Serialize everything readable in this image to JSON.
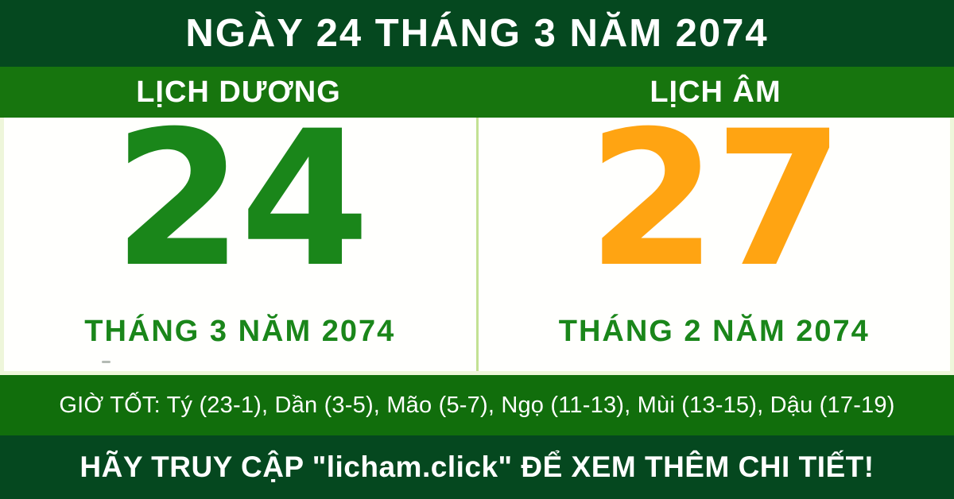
{
  "colors": {
    "dark_green": "#05481f",
    "bright_green": "#17750e",
    "hours_green": "#116e0c",
    "day_green": "#1a861a",
    "day_orange": "#ffa412",
    "text_white": "#ffffff",
    "panel_border": "#eef6da",
    "divider_green": "#c3e193"
  },
  "header": {
    "title": "NGÀY 24 THÁNG 3 NĂM 2074"
  },
  "calendar": {
    "solar": {
      "label": "LỊCH DƯƠNG",
      "day": "24",
      "month_year": "THÁNG 3 NĂM 2074"
    },
    "lunar": {
      "label": "LỊCH ÂM",
      "day": "27",
      "month_year": "THÁNG 2 NĂM 2074"
    }
  },
  "good_hours": {
    "text": "GIỜ TỐT: Tý (23-1), Dần (3-5), Mão (5-7), Ngọ (11-13), Mùi (13-15), Dậu (17-19)"
  },
  "footer": {
    "text": "HÃY TRUY CẬP \"licham.click\" ĐỂ XEM THÊM CHI TIẾT!"
  }
}
